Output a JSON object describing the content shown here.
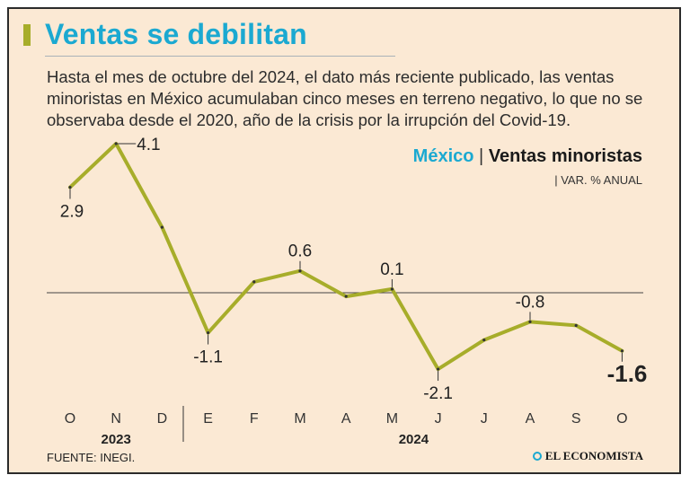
{
  "headline": "Ventas se debilitan",
  "intro": "Hasta el mes de octubre del 2024, el dato más reciente publicado, las ventas minoristas en México acumulaban cinco meses en terreno negativo, lo que no se observaba desde el 2020, año de la crisis por la irrupción del Covid-19.",
  "chart_header": {
    "country": "México",
    "separator": "|",
    "series_label": "Ventas minoristas",
    "unit": "| VAR. % ANUAL"
  },
  "source": "FUENTE: INEGI.",
  "brand": "EL ECONOMISTA",
  "colors": {
    "line": "#a7ad2a",
    "accent": "#1ba9d1",
    "background": "#fbe9d4"
  },
  "chart_data": {
    "type": "line",
    "title": "México | Ventas minoristas",
    "ylabel": "VAR. % ANUAL",
    "categories": [
      "O",
      "N",
      "D",
      "E",
      "F",
      "M",
      "A",
      "M",
      "J",
      "J",
      "A",
      "S",
      "O"
    ],
    "year_labels": [
      {
        "label": "2023",
        "start": 0,
        "end": 2
      },
      {
        "label": "2024",
        "start": 3,
        "end": 12
      }
    ],
    "values": [
      2.9,
      4.1,
      1.8,
      -1.1,
      0.3,
      0.6,
      -0.1,
      0.1,
      -2.1,
      -1.3,
      -0.8,
      -0.9,
      -1.6
    ],
    "labels": [
      {
        "i": 0,
        "text": "2.9",
        "pos": "below"
      },
      {
        "i": 1,
        "text": "4.1",
        "pos": "right"
      },
      {
        "i": 3,
        "text": "-1.1",
        "pos": "below"
      },
      {
        "i": 5,
        "text": "0.6",
        "pos": "above"
      },
      {
        "i": 7,
        "text": "0.1",
        "pos": "above"
      },
      {
        "i": 8,
        "text": "-2.1",
        "pos": "below"
      },
      {
        "i": 10,
        "text": "-0.8",
        "pos": "above"
      },
      {
        "i": 12,
        "text": "-1.6",
        "pos": "below-bold"
      }
    ],
    "zero_line": true,
    "grid": false
  }
}
